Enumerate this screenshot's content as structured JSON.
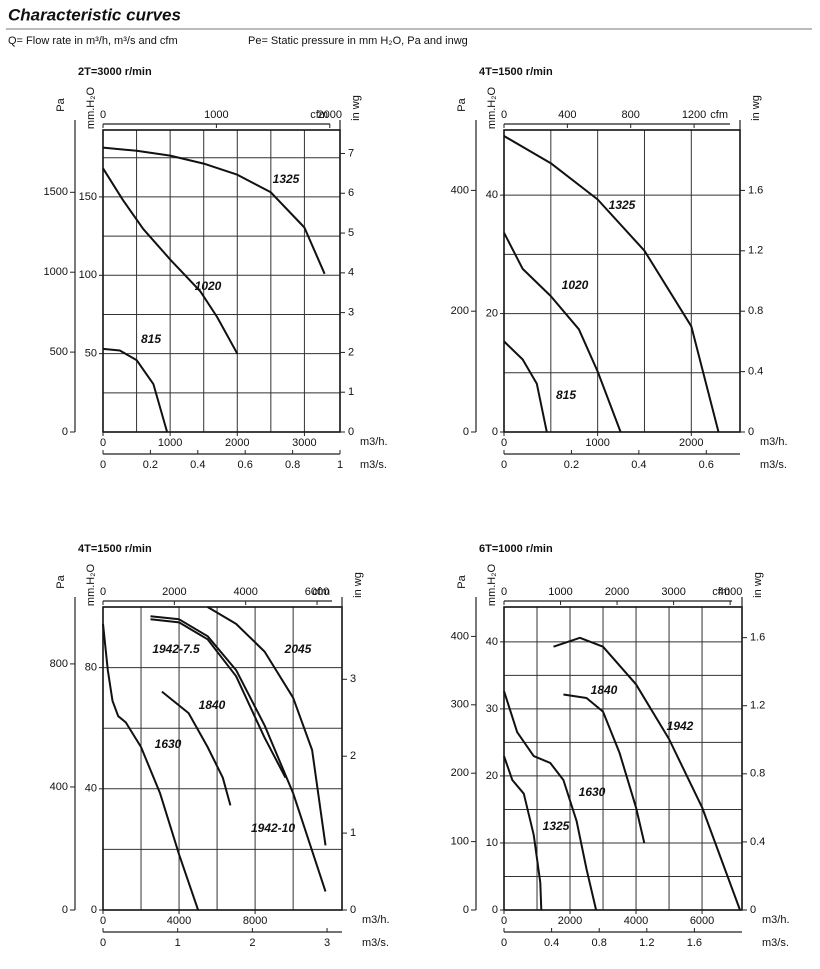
{
  "header": {
    "title": "Characteristic curves",
    "note_q": "Q= Flow rate in m³/h, m³/s and cfm",
    "note_pe": "Pe= Static pressure in mm H₂O, Pa and inwg"
  },
  "chart_data": [
    {
      "type": "line",
      "title": "2T=3000 r/min",
      "x_label": "m3/h.",
      "x2_label": "cfm",
      "x3_label": "m3/s.",
      "y_label": "Pa",
      "y2_label": "in wg",
      "y3_label": "mm.H₂O",
      "xlim": [
        0,
        3530
      ],
      "xticks": [
        0,
        1000,
        2000,
        3000
      ],
      "xgrid": [
        500,
        1000,
        1500,
        2000,
        2500,
        3000
      ],
      "x2lim": [
        0,
        2090
      ],
      "x2ticks": [
        0,
        1000,
        2000
      ],
      "x3lim": [
        0,
        1
      ],
      "x3ticks": [
        0,
        0.2,
        0.4,
        0.6,
        0.8,
        1
      ],
      "ylim": [
        0,
        1890
      ],
      "yticks": [
        0,
        500,
        1000,
        1500
      ],
      "y2lim": [
        0,
        7.59
      ],
      "y2ticks": [
        0,
        1,
        2,
        3,
        4,
        5,
        6,
        7
      ],
      "y3lim": [
        0,
        192.7
      ],
      "y3ticks": [
        50,
        100,
        150
      ],
      "y3grid": [
        25,
        50,
        75,
        100,
        125,
        150,
        175
      ],
      "series": [
        {
          "name": "1325",
          "x": [
            0,
            500,
            1000,
            1500,
            2000,
            2500,
            3000,
            3300
          ],
          "values": [
            1780,
            1760,
            1730,
            1680,
            1610,
            1500,
            1280,
            990
          ]
        },
        {
          "name": "1020",
          "x": [
            0,
            300,
            600,
            1000,
            1450,
            1700,
            2000
          ],
          "values": [
            1650,
            1450,
            1270,
            1080,
            880,
            720,
            490
          ]
        },
        {
          "name": "815",
          "x": [
            0,
            250,
            500,
            750,
            955
          ],
          "values": [
            520,
            510,
            450,
            300,
            0
          ]
        }
      ]
    },
    {
      "type": "line",
      "title": "4T=1500 r/min",
      "x_label": "m3/h.",
      "x2_label": "cfm",
      "x3_label": "m3/s.",
      "y_label": "Pa",
      "y2_label": "in wg",
      "y3_label": "mm.H₂O",
      "xlim": [
        0,
        2520
      ],
      "xticks": [
        0,
        1000,
        2000
      ],
      "xgrid": [
        500,
        1000,
        1500,
        2000
      ],
      "x2lim": [
        0,
        1490
      ],
      "x2ticks": [
        0,
        400,
        800,
        1200
      ],
      "x3lim": [
        0,
        0.7
      ],
      "x3ticks": [
        0,
        0.2,
        0.4,
        0.6
      ],
      "ylim": [
        0,
        500
      ],
      "yticks": [
        0,
        200,
        400
      ],
      "y2lim": [
        0,
        2.0
      ],
      "y2ticks": [
        0,
        0.4,
        0.8,
        1.2,
        1.6
      ],
      "y3lim": [
        0,
        51
      ],
      "y3ticks": [
        0,
        20,
        40
      ],
      "y3grid": [
        10,
        20,
        30,
        40
      ],
      "series": [
        {
          "name": "1325",
          "x": [
            0,
            500,
            1000,
            1500,
            2000,
            2290
          ],
          "values": [
            490,
            445,
            385,
            300,
            175,
            0
          ]
        },
        {
          "name": "1020",
          "x": [
            0,
            200,
            500,
            800,
            1000,
            1245
          ],
          "values": [
            330,
            270,
            225,
            170,
            100,
            0
          ]
        },
        {
          "name": "815",
          "x": [
            0,
            200,
            350,
            430,
            457
          ],
          "values": [
            150,
            120,
            80,
            20,
            0
          ]
        }
      ]
    },
    {
      "type": "line",
      "title": "4T=1500 r/min",
      "x_label": "m3/h.",
      "x2_label": "cfm",
      "x3_label": "m3/s.",
      "y_label": "Pa",
      "y2_label": "in wg",
      "y3_label": "mm.H₂O",
      "xlim": [
        0,
        12570
      ],
      "xticks": [
        0,
        4000,
        8000
      ],
      "xgrid": [
        2000,
        4000,
        6000,
        8000,
        10000
      ],
      "x2lim": [
        0,
        6700
      ],
      "x2ticks": [
        0,
        2000,
        4000,
        6000
      ],
      "x3lim": [
        0,
        3.2
      ],
      "x3ticks": [
        0,
        1,
        2,
        3
      ],
      "ylim": [
        0,
        985
      ],
      "yticks": [
        0,
        400,
        800
      ],
      "y2lim": [
        0,
        3.94
      ],
      "y2ticks": [
        0,
        1,
        2,
        3
      ],
      "y3lim": [
        0,
        100
      ],
      "y3ticks": [
        0,
        40,
        80
      ],
      "y3grid": [
        20,
        40,
        60,
        80
      ],
      "series": [
        {
          "name": "1942-7.5",
          "x": [
            2500,
            4000,
            5500,
            7000,
            8500,
            9600
          ],
          "values": [
            945,
            935,
            880,
            760,
            560,
            430
          ]
        },
        {
          "name": "2045",
          "x": [
            5500,
            7000,
            8500,
            10000,
            11000,
            11700
          ],
          "values": [
            985,
            930,
            840,
            690,
            520,
            210
          ]
        },
        {
          "name": "1840",
          "x": [
            3100,
            4500,
            5500,
            6300,
            6700
          ],
          "values": [
            710,
            640,
            530,
            430,
            340
          ]
        },
        {
          "name": "1630",
          "x": [
            0,
            250,
            500,
            800,
            1200,
            2000,
            3000,
            4000,
            5000
          ],
          "values": [
            930,
            780,
            680,
            630,
            610,
            530,
            380,
            180,
            0
          ]
        },
        {
          "name": "1942-10",
          "x": [
            2500,
            4000,
            5500,
            7000,
            8500,
            10000,
            11700
          ],
          "values": [
            955,
            945,
            890,
            780,
            600,
            380,
            60
          ]
        }
      ]
    },
    {
      "type": "line",
      "title": "6T=1000 r/min",
      "x_label": "m3/h.",
      "x2_label": "cfm",
      "x3_label": "m3/s.",
      "y_label": "Pa",
      "y2_label": "in wg",
      "y3_label": "mm.H₂O",
      "xlim": [
        0,
        7210
      ],
      "xticks": [
        0,
        2000,
        4000,
        6000
      ],
      "xgrid": [
        1000,
        2000,
        3000,
        4000,
        5000,
        6000
      ],
      "x2lim": [
        0,
        4210
      ],
      "x2ticks": [
        0,
        1000,
        2000,
        3000,
        4000
      ],
      "x3lim": [
        0,
        2
      ],
      "x3ticks": [
        0,
        0.4,
        0.8,
        1.2,
        1.6
      ],
      "ylim": [
        0,
        443
      ],
      "yticks": [
        0,
        100,
        200,
        300,
        400
      ],
      "y2lim": [
        0,
        1.78
      ],
      "y2ticks": [
        0,
        0.4,
        0.8,
        1.2,
        1.6
      ],
      "y3lim": [
        0,
        45.2
      ],
      "y3ticks": [
        0,
        10,
        20,
        30,
        40
      ],
      "y3grid": [
        5,
        10,
        15,
        20,
        25,
        30,
        35,
        40
      ],
      "series": [
        {
          "name": "1840",
          "x": [
            1800,
            2500,
            3000,
            3500,
            4000,
            4250
          ],
          "values": [
            315,
            310,
            290,
            230,
            150,
            98
          ]
        },
        {
          "name": "1942",
          "x": [
            1500,
            2300,
            3000,
            4000,
            5000,
            6000,
            7150
          ],
          "values": [
            385,
            398,
            385,
            330,
            250,
            150,
            0
          ]
        },
        {
          "name": "1630",
          "x": [
            0,
            400,
            900,
            1400,
            1800,
            2200,
            2500,
            2790
          ],
          "values": [
            320,
            260,
            225,
            215,
            190,
            130,
            60,
            0
          ]
        },
        {
          "name": "1325",
          "x": [
            0,
            250,
            600,
            900,
            1100,
            1130
          ],
          "values": [
            225,
            190,
            170,
            110,
            40,
            0
          ]
        }
      ]
    }
  ]
}
